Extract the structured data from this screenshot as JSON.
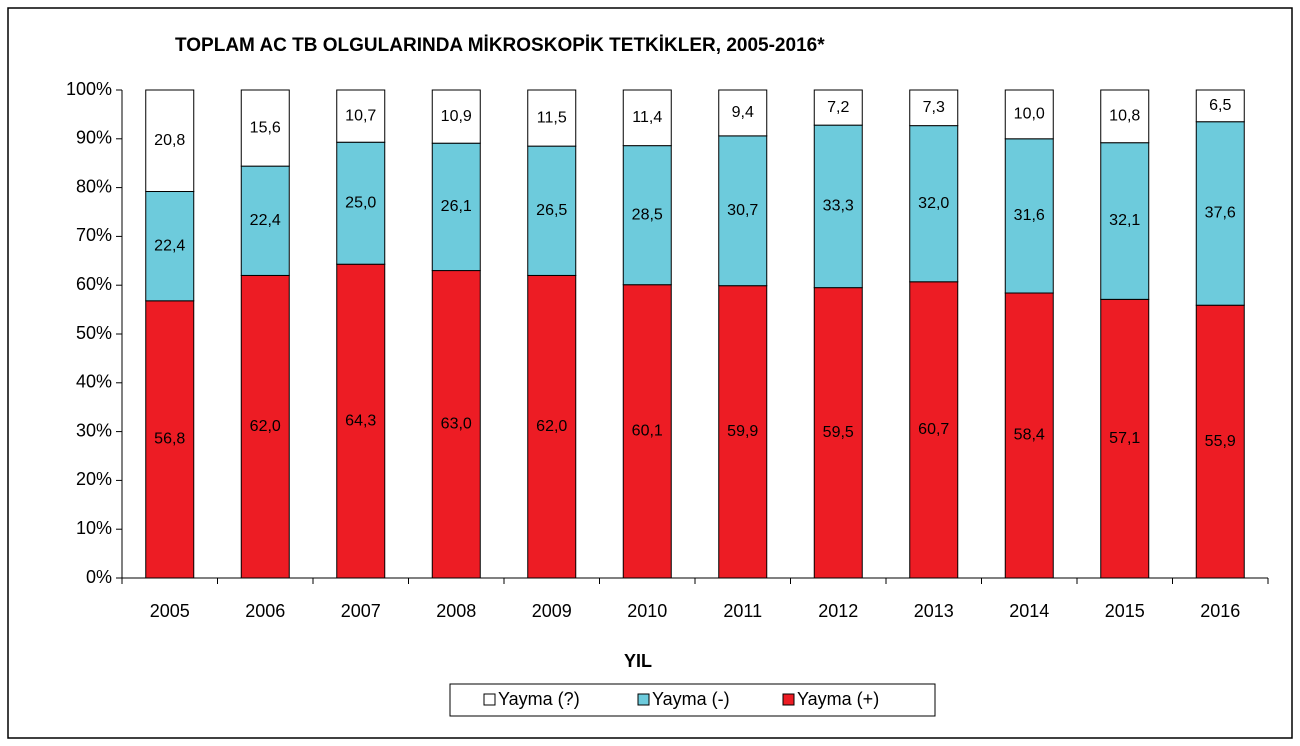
{
  "chart_data": {
    "type": "stacked_bar",
    "title": "TOPLAM AC TB OLGULARINDA MİKROSKOPİK TETKİKLER, 2005-2016*",
    "x_label": "YIL",
    "categories": [
      "2005",
      "2006",
      "2007",
      "2008",
      "2009",
      "2010",
      "2011",
      "2012",
      "2013",
      "2014",
      "2015",
      "2016"
    ],
    "series": [
      {
        "name": "Yayma (+)",
        "color": "#ed1c24",
        "values": [
          56.8,
          62.0,
          64.3,
          63.0,
          62.0,
          60.1,
          59.9,
          59.5,
          60.7,
          58.4,
          57.1,
          55.9
        ],
        "value_labels": [
          "56,8",
          "62,0",
          "64,3",
          "63,0",
          "62,0",
          "60,1",
          "59,9",
          "59,5",
          "60,7",
          "58,4",
          "57,1",
          "55,9"
        ]
      },
      {
        "name": "Yayma (-)",
        "color": "#6dcbdc",
        "values": [
          22.4,
          22.4,
          25.0,
          26.1,
          26.5,
          28.5,
          30.7,
          33.3,
          32.0,
          31.6,
          32.1,
          37.6
        ],
        "value_labels": [
          "22,4",
          "22,4",
          "25,0",
          "26,1",
          "26,5",
          "28,5",
          "30,7",
          "33,3",
          "32,0",
          "31,6",
          "32,1",
          "37,6"
        ]
      },
      {
        "name": "Yayma (?)",
        "color": "#ffffff",
        "values": [
          20.8,
          15.6,
          10.7,
          10.9,
          11.5,
          11.4,
          9.4,
          7.2,
          7.3,
          10.0,
          10.8,
          6.5
        ],
        "value_labels": [
          "20,8",
          "15,6",
          "10,7",
          "10,9",
          "11,5",
          "11,4",
          "9,4",
          "7,2",
          "7,3",
          "10,0",
          "10,8",
          "6,5"
        ]
      }
    ],
    "ylim": [
      0,
      100
    ],
    "yticks": [
      {
        "value": 0,
        "label": "0%"
      },
      {
        "value": 10,
        "label": "10%"
      },
      {
        "value": 20,
        "label": "20%"
      },
      {
        "value": 30,
        "label": "30%"
      },
      {
        "value": 40,
        "label": "40%"
      },
      {
        "value": 50,
        "label": "50%"
      },
      {
        "value": 60,
        "label": "60%"
      },
      {
        "value": 70,
        "label": "70%"
      },
      {
        "value": 80,
        "label": "80%"
      },
      {
        "value": 90,
        "label": "90%"
      },
      {
        "value": 100,
        "label": "100%"
      }
    ],
    "legend": "bottom"
  }
}
